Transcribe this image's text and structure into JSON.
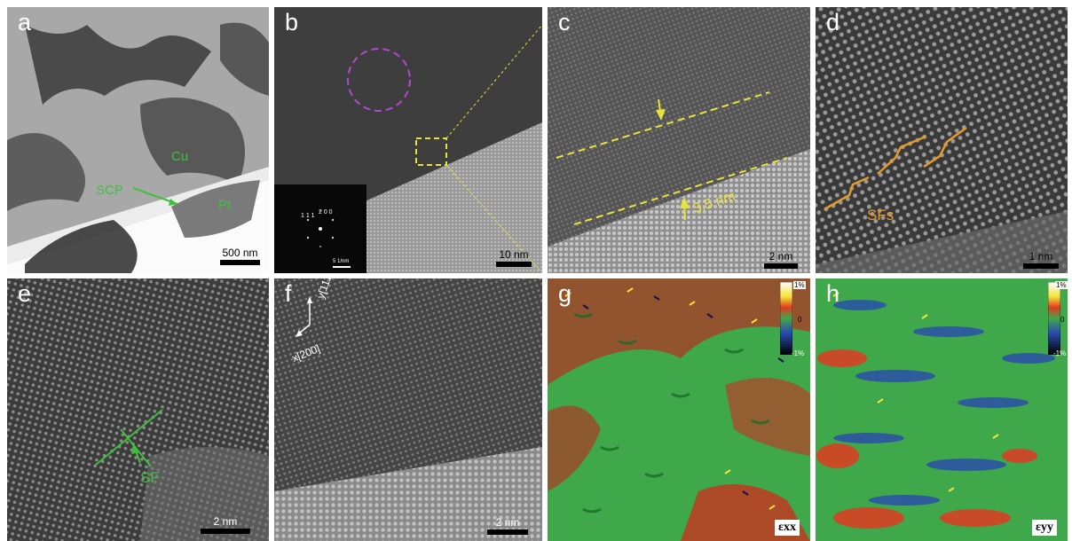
{
  "panels": {
    "a": {
      "label": "a",
      "annotations": {
        "cu": "Cu",
        "pt": "Pt",
        "scp": "SCP"
      },
      "scale_bar": "500 nm"
    },
    "b": {
      "label": "b",
      "scale_bar": "10 nm",
      "inset": {
        "spot_1": "1 1 1",
        "spot_2": "2 0 0",
        "scale": "5 1/nm"
      }
    },
    "c": {
      "label": "c",
      "annotation": "3.5 nm",
      "scale_bar": "2 nm"
    },
    "d": {
      "label": "d",
      "annotation": "SFs",
      "scale_bar": "1 nm"
    },
    "e": {
      "label": "e",
      "annotation": "SF",
      "scale_bar": "2 nm"
    },
    "f": {
      "label": "f",
      "axis_y": "y[111]",
      "axis_x": "x[200]",
      "scale_bar": "2 nm"
    },
    "g": {
      "label": "g",
      "colorbar": {
        "max": "1%",
        "mid": "0",
        "min": "-1%"
      },
      "symbol": "εxx"
    },
    "h": {
      "label": "h",
      "colorbar": {
        "max": "1%",
        "mid": "0",
        "min": "-1%"
      },
      "symbol": "εyy"
    }
  },
  "colors": {
    "green_annotation": "#3fbf3f",
    "yellow_annotation": "#e8e23a",
    "orange_annotation": "#e89a2a",
    "purple_annotation": "#b04ad0"
  }
}
